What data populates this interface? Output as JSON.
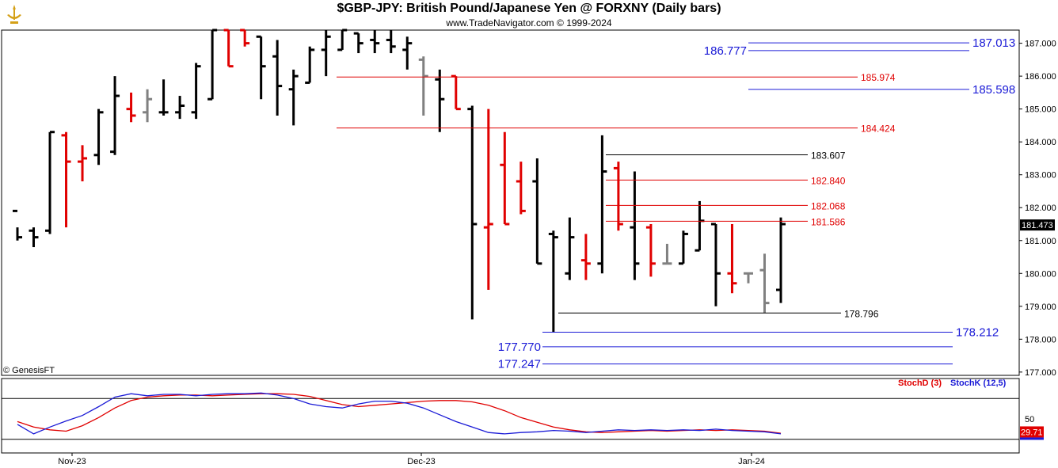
{
  "header": {
    "title": "$GBP-JPY:  British Pound/Japanese Yen @ FORXNY  (Daily bars)",
    "subtitle": "www.TradeNavigator.com © 1999-2024",
    "copyright": "© GenesisFT"
  },
  "colors": {
    "up": "#000000",
    "down": "#e00000",
    "inside": "#808080",
    "outside": "#00cc00",
    "blue": "#1a1ad6",
    "red": "#e00000",
    "panel_bg": "#ffffff"
  },
  "chart_data": [
    {
      "type": "bar",
      "subtype": "ohlc",
      "ylim": [
        176.9,
        187.4
      ],
      "yticks": [
        "187.000",
        "186.000",
        "185.000",
        "184.000",
        "183.000",
        "182.000",
        "181.000",
        "180.000",
        "179.000",
        "178.000",
        "177.000"
      ],
      "xticks": [
        "Nov-23",
        "Dec-23",
        "Jan-24"
      ],
      "last_price": "181.473",
      "bars": [
        {
          "c": "k",
          "h": 181.4,
          "l": 181.0,
          "o": 181.9,
          "cl": 181.1
        },
        {
          "c": "k",
          "h": 181.4,
          "l": 180.8,
          "o": 181.3,
          "cl": 181.1
        },
        {
          "c": "k",
          "h": 184.3,
          "l": 181.2,
          "o": 181.3,
          "cl": 184.3
        },
        {
          "c": "r",
          "h": 184.3,
          "l": 181.4,
          "o": 184.2,
          "cl": 183.4
        },
        {
          "c": "r",
          "h": 183.9,
          "l": 182.8,
          "o": 183.4,
          "cl": 183.5
        },
        {
          "c": "k",
          "h": 185.0,
          "l": 183.3,
          "o": 183.6,
          "cl": 184.9
        },
        {
          "c": "k",
          "h": 186.0,
          "l": 183.6,
          "o": 183.7,
          "cl": 185.4
        },
        {
          "c": "r",
          "h": 185.5,
          "l": 184.6,
          "o": 185.0,
          "cl": 184.8
        },
        {
          "c": "g",
          "h": 185.6,
          "l": 184.6,
          "o": 184.9,
          "cl": 185.3
        },
        {
          "c": "k",
          "h": 185.9,
          "l": 184.8,
          "o": 184.9,
          "cl": 184.9
        },
        {
          "c": "k",
          "h": 185.4,
          "l": 184.7,
          "o": 184.9,
          "cl": 185.1
        },
        {
          "c": "k",
          "h": 186.4,
          "l": 184.7,
          "o": 184.9,
          "cl": 186.3
        },
        {
          "c": "k",
          "h": 187.4,
          "l": 185.3,
          "o": 185.3,
          "cl": 187.4
        },
        {
          "c": "r",
          "h": 187.4,
          "l": 186.3,
          "o": 187.4,
          "cl": 186.3
        },
        {
          "c": "r",
          "h": 187.4,
          "l": 186.9,
          "o": 187.4,
          "cl": 187.0
        },
        {
          "c": "k",
          "h": 187.2,
          "l": 185.3,
          "o": 187.2,
          "cl": 186.3
        },
        {
          "c": "k",
          "h": 187.1,
          "l": 184.8,
          "o": 186.6,
          "cl": 185.7
        },
        {
          "c": "k",
          "h": 186.2,
          "l": 184.5,
          "o": 185.6,
          "cl": 186.0
        },
        {
          "c": "k",
          "h": 186.9,
          "l": 185.8,
          "o": 185.8,
          "cl": 186.8
        },
        {
          "c": "k",
          "h": 187.4,
          "l": 186.0,
          "o": 186.8,
          "cl": 187.2
        },
        {
          "c": "k",
          "h": 187.4,
          "l": 186.8,
          "o": 186.8,
          "cl": 187.4
        },
        {
          "c": "k",
          "h": 187.3,
          "l": 186.7,
          "o": 187.3,
          "cl": 187.0
        },
        {
          "c": "k",
          "h": 187.4,
          "l": 186.7,
          "o": 187.1,
          "cl": 187.0
        },
        {
          "c": "k",
          "h": 187.4,
          "l": 186.7,
          "o": 187.1,
          "cl": 186.9
        },
        {
          "c": "k",
          "h": 187.2,
          "l": 186.2,
          "o": 186.8,
          "cl": 187.0
        },
        {
          "c": "g",
          "h": 186.6,
          "l": 184.8,
          "o": 186.5,
          "cl": 186.0
        },
        {
          "c": "k",
          "h": 186.2,
          "l": 184.3,
          "o": 185.9,
          "cl": 185.3
        },
        {
          "c": "r",
          "h": 186.0,
          "l": 185.0,
          "o": 186.0,
          "cl": 185.0
        },
        {
          "c": "k",
          "h": 185.1,
          "l": 178.6,
          "o": 185.0,
          "cl": 181.5
        },
        {
          "c": "r",
          "h": 185.0,
          "l": 179.5,
          "o": 181.4,
          "cl": 181.5
        },
        {
          "c": "r",
          "h": 184.3,
          "l": 181.5,
          "o": 183.3,
          "cl": 181.5
        },
        {
          "c": "r",
          "h": 183.4,
          "l": 181.8,
          "o": 182.8,
          "cl": 181.9
        },
        {
          "c": "k",
          "h": 183.5,
          "l": 180.3,
          "o": 182.8,
          "cl": 180.3
        },
        {
          "c": "k",
          "h": 181.3,
          "l": 178.2,
          "o": 181.2,
          "cl": 181.1
        },
        {
          "c": "k",
          "h": 181.7,
          "l": 179.8,
          "o": 180.0,
          "cl": 181.1
        },
        {
          "c": "r",
          "h": 181.2,
          "l": 179.8,
          "o": 180.4,
          "cl": 180.3
        },
        {
          "c": "k",
          "h": 184.2,
          "l": 180.0,
          "o": 180.3,
          "cl": 183.1
        },
        {
          "c": "r",
          "h": 183.4,
          "l": 181.3,
          "o": 183.2,
          "cl": 181.5
        },
        {
          "c": "k",
          "h": 183.1,
          "l": 179.8,
          "o": 181.4,
          "cl": 180.3
        },
        {
          "c": "r",
          "h": 181.5,
          "l": 179.9,
          "o": 181.4,
          "cl": 180.3
        },
        {
          "c": "g",
          "h": 180.9,
          "l": 180.3,
          "o": 180.3,
          "cl": 180.3
        },
        {
          "c": "k",
          "h": 181.3,
          "l": 180.3,
          "o": 180.3,
          "cl": 181.2
        },
        {
          "c": "k",
          "h": 182.2,
          "l": 180.7,
          "o": 180.7,
          "cl": 181.6
        },
        {
          "c": "k",
          "h": 181.5,
          "l": 179.0,
          "o": 181.5,
          "cl": 180.0
        },
        {
          "c": "r",
          "h": 181.5,
          "l": 179.4,
          "o": 180.0,
          "cl": 179.7
        },
        {
          "c": "g",
          "h": 180.0,
          "l": 179.7,
          "o": 180.0,
          "cl": 180.0
        },
        {
          "c": "g",
          "h": 180.6,
          "l": 178.8,
          "o": 180.1,
          "cl": 179.1
        },
        {
          "c": "k",
          "h": 181.7,
          "l": 179.1,
          "o": 179.5,
          "cl": 181.5
        }
      ],
      "levels": [
        {
          "value": 187.013,
          "label": "187.013",
          "color": "blue"
        },
        {
          "value": 186.777,
          "label": "186.777",
          "color": "blue"
        },
        {
          "value": 185.974,
          "label": "185.974",
          "color": "red"
        },
        {
          "value": 185.598,
          "label": "185.598",
          "color": "blue"
        },
        {
          "value": 184.424,
          "label": "184.424",
          "color": "red"
        },
        {
          "value": 183.607,
          "label": "183.607",
          "color": "black"
        },
        {
          "value": 182.84,
          "label": "182.840",
          "color": "red"
        },
        {
          "value": 182.068,
          "label": "182.068",
          "color": "red"
        },
        {
          "value": 181.586,
          "label": "181.586",
          "color": "red"
        },
        {
          "value": 178.796,
          "label": "178.796",
          "color": "black"
        },
        {
          "value": 178.212,
          "label": "178.212",
          "color": "blue"
        },
        {
          "value": 177.77,
          "label": "177.770",
          "color": "blue"
        },
        {
          "value": 177.247,
          "label": "177.247",
          "color": "blue"
        }
      ]
    },
    {
      "type": "line",
      "ylim": [
        0,
        100
      ],
      "yticks": [
        "50"
      ],
      "last_value": "29.71",
      "series": [
        {
          "name": "StochD (3)",
          "color": "red",
          "values": [
            46,
            38,
            34,
            32,
            40,
            52,
            66,
            77,
            82,
            84,
            85,
            85,
            84,
            85,
            86,
            87,
            87,
            86,
            83,
            77,
            71,
            68,
            70,
            72,
            74,
            76,
            77,
            77,
            75,
            70,
            62,
            52,
            45,
            38,
            34,
            31,
            30,
            31,
            32,
            33,
            32,
            33,
            34,
            33,
            34,
            33,
            32,
            29
          ]
        },
        {
          "name": "StochK (12,5)",
          "color": "blue",
          "values": [
            42,
            28,
            38,
            47,
            55,
            68,
            82,
            87,
            84,
            86,
            86,
            84,
            86,
            87,
            87,
            88,
            85,
            80,
            72,
            68,
            66,
            72,
            76,
            76,
            73,
            66,
            56,
            46,
            38,
            30,
            28,
            30,
            31,
            33,
            32,
            30,
            32,
            34,
            33,
            34,
            33,
            34,
            33,
            35,
            33,
            32,
            31,
            28
          ]
        }
      ]
    }
  ]
}
